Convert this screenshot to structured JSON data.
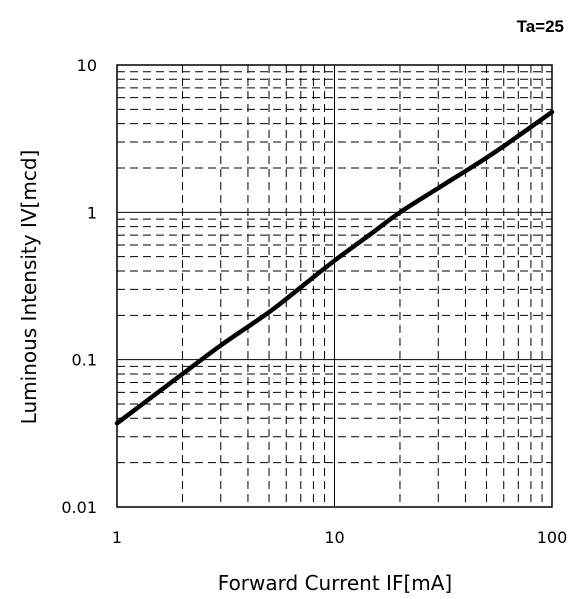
{
  "chart_data": {
    "type": "line",
    "title": "",
    "note": "Ta=25",
    "xlabel": "Forward Current IF[mA]",
    "ylabel": "Luminous Intensity IV[mcd]",
    "xscale": "log",
    "yscale": "log",
    "xlim": [
      1,
      100
    ],
    "ylim": [
      0.01,
      10
    ],
    "x_ticks": [
      "1",
      "10",
      "100"
    ],
    "y_ticks": [
      "0.01",
      "0.1",
      "1",
      "10"
    ],
    "grid": true,
    "series": [
      {
        "x": [
          1,
          2,
          3,
          5,
          7,
          10,
          15,
          20,
          30,
          50,
          70,
          100
        ],
        "y": [
          0.037,
          0.08,
          0.125,
          0.21,
          0.31,
          0.47,
          0.73,
          1.0,
          1.46,
          2.35,
          3.3,
          4.8
        ]
      }
    ]
  }
}
